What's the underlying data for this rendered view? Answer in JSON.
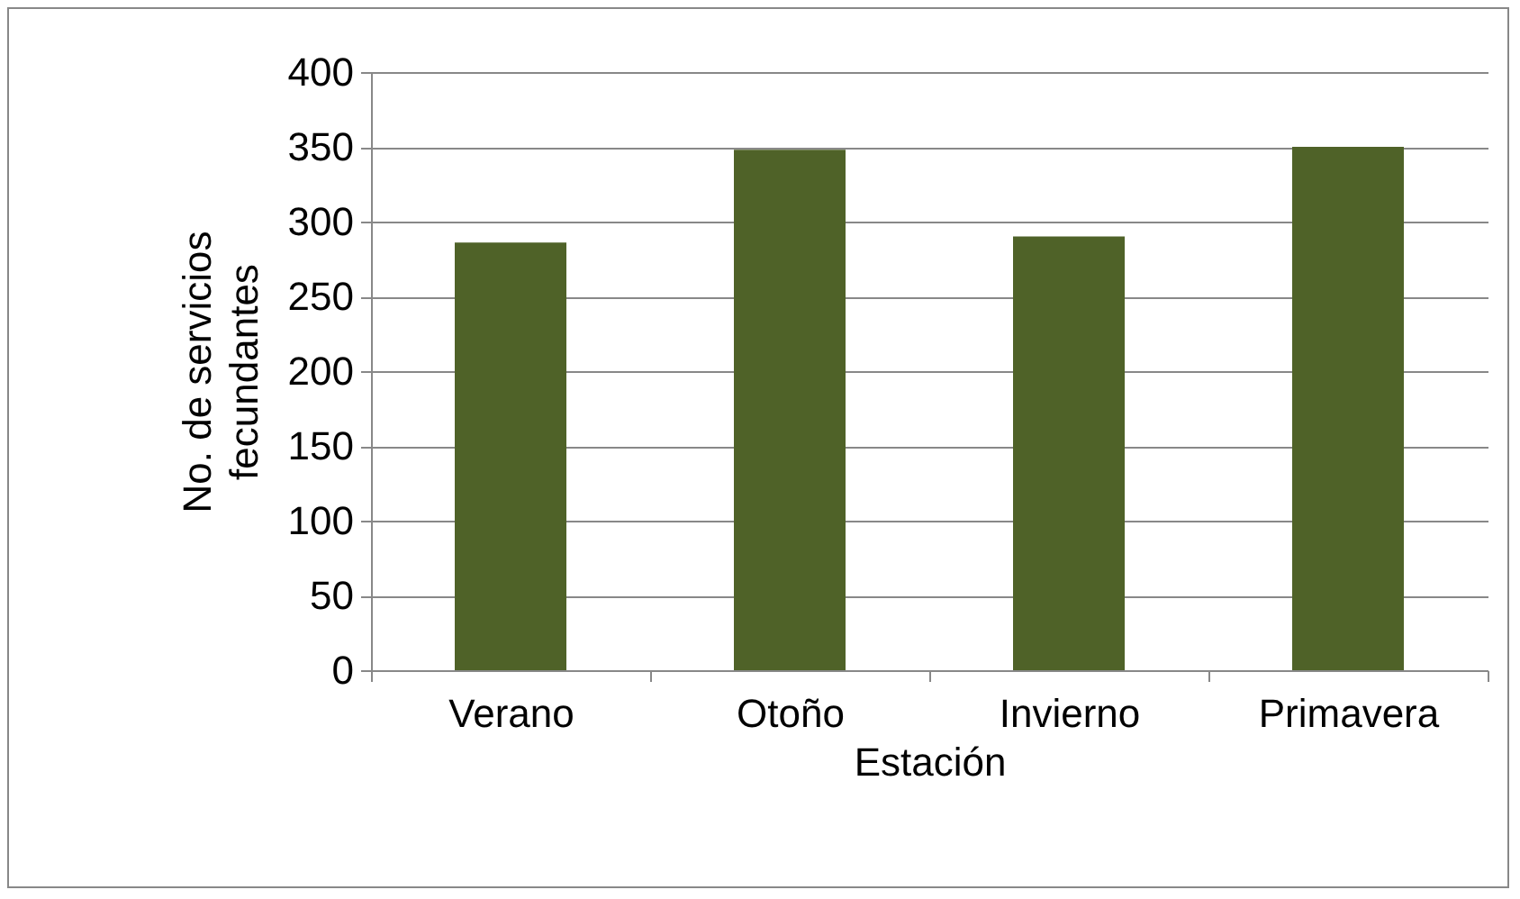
{
  "chart_data": {
    "type": "bar",
    "xlabel": "Estación",
    "ylabel": "No. de servicios\nfecundantes",
    "categories": [
      "Verano",
      "Otoño",
      "Invierno",
      "Primavera"
    ],
    "values": [
      286,
      348,
      290,
      350
    ],
    "color": "#4f6228",
    "ylim": [
      0,
      400
    ],
    "yticks": [
      0,
      50,
      100,
      150,
      200,
      250,
      300,
      350,
      400
    ],
    "grid": "y"
  }
}
